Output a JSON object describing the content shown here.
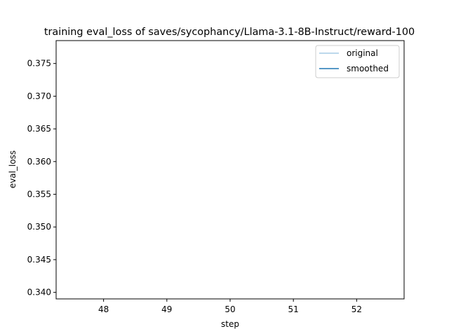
{
  "chart_data": {
    "type": "line",
    "title": "training eval_loss of saves/sycophancy/Llama-3.1-8B-Instruct/reward-100",
    "xlabel": "step",
    "ylabel": "eval_loss",
    "xlim": [
      47.25,
      52.75
    ],
    "ylim": [
      0.339,
      0.3785
    ],
    "xticks": [
      48,
      49,
      50,
      51,
      52
    ],
    "xtick_labels": [
      "48",
      "49",
      "50",
      "51",
      "52"
    ],
    "yticks": [
      0.34,
      0.345,
      0.35,
      0.355,
      0.36,
      0.365,
      0.37,
      0.375
    ],
    "ytick_labels": [
      "0.340",
      "0.345",
      "0.350",
      "0.355",
      "0.360",
      "0.365",
      "0.370",
      "0.375"
    ],
    "grid": false,
    "legend_position": "top-right",
    "series": [
      {
        "name": "original",
        "color": "#a6cbe6",
        "x": [],
        "y": []
      },
      {
        "name": "smoothed",
        "color": "#1f77b4",
        "x": [],
        "y": []
      }
    ]
  }
}
